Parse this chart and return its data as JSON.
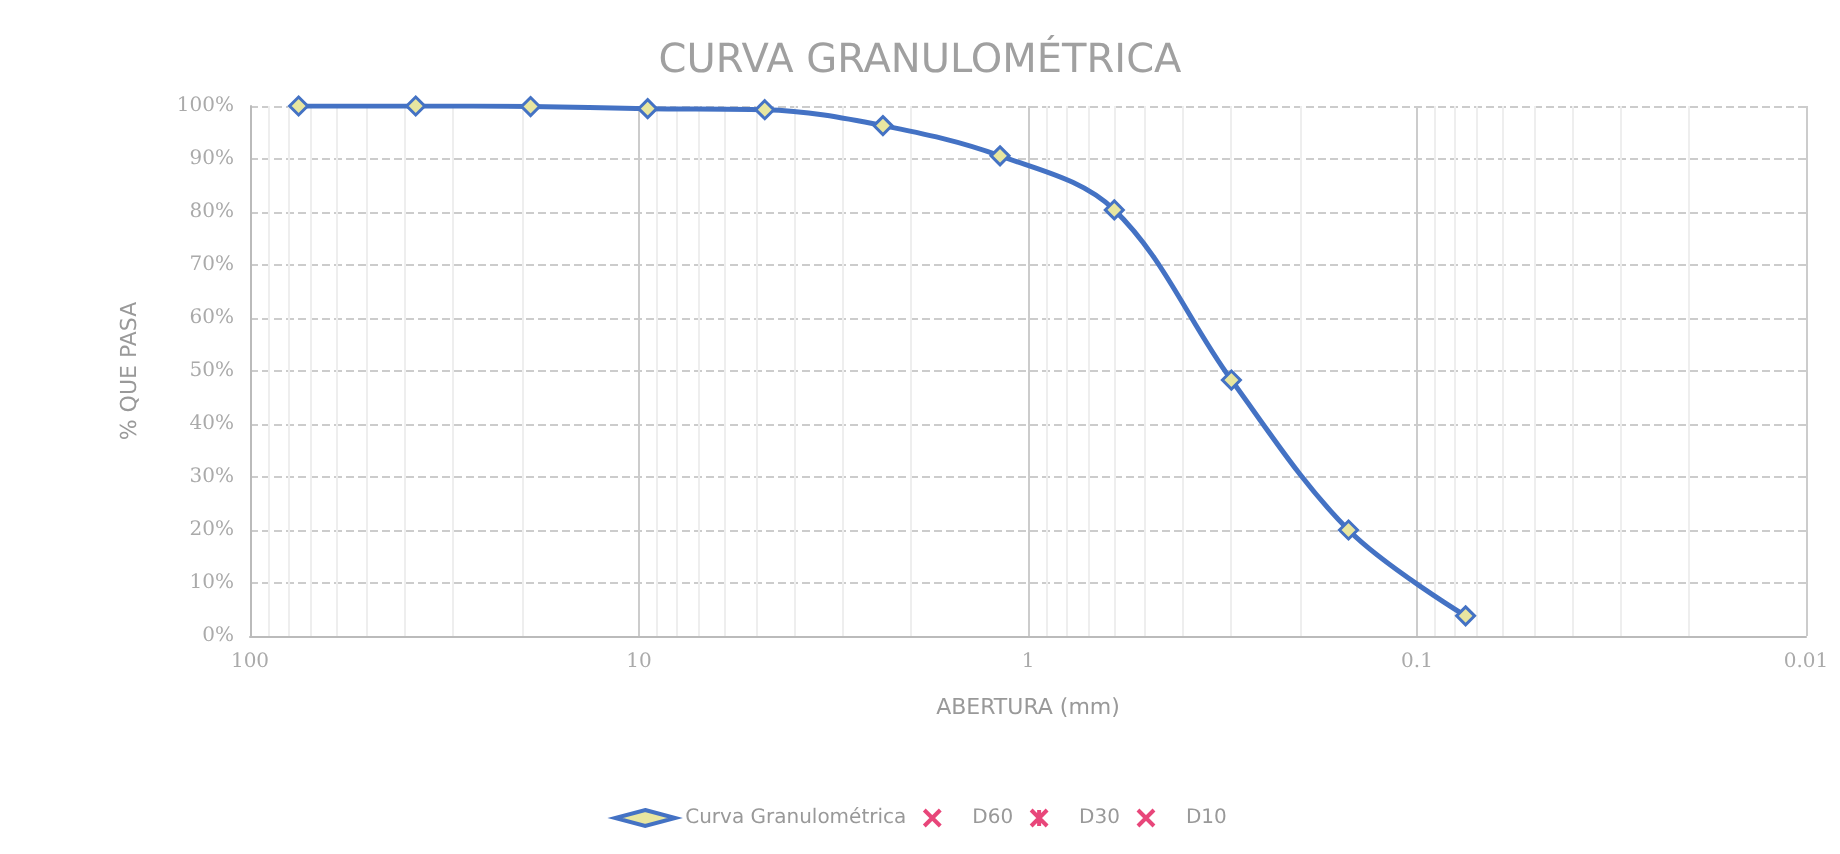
{
  "chart_data": {
    "type": "line",
    "title": "CURVA GRANULOMÉTRICA",
    "xlabel": "ABERTURA (mm)",
    "ylabel": "% QUE PASA",
    "log": "x",
    "xlim": [
      100,
      0.01
    ],
    "xticks": [
      100,
      10,
      1,
      0.1,
      0.01
    ],
    "ylim": [
      0,
      100
    ],
    "yticks": [
      {
        "value": 0,
        "label": "0%"
      },
      {
        "value": 10,
        "label": "10%"
      },
      {
        "value": 20,
        "label": "20%"
      },
      {
        "value": 30,
        "label": "30%"
      },
      {
        "value": 40,
        "label": "40%"
      },
      {
        "value": 50,
        "label": "50%"
      },
      {
        "value": 60,
        "label": "60%"
      },
      {
        "value": 70,
        "label": "70%"
      },
      {
        "value": 80,
        "label": "80%"
      },
      {
        "value": 90,
        "label": "90%"
      },
      {
        "value": 100,
        "label": "100%"
      }
    ],
    "grid": true,
    "legend": "bottom",
    "series": [
      {
        "name": "Curva Granulométrica",
        "color": "#4472c4",
        "marker": "diamond",
        "x": [
          75,
          37.5,
          19,
          9.5,
          4.75,
          2.36,
          1.18,
          0.6,
          0.3,
          0.15,
          0.075
        ],
        "values": [
          100,
          100,
          99.9,
          99.5,
          99.3,
          96.3,
          90.6,
          80.4,
          48.3,
          20,
          3.8
        ]
      },
      {
        "name": "D60",
        "color": "#e8467a",
        "marker": "cross"
      },
      {
        "name": "D30",
        "color": "#e8467a",
        "marker": "star"
      },
      {
        "name": "D10",
        "color": "#e8467a",
        "marker": "cross"
      }
    ]
  }
}
